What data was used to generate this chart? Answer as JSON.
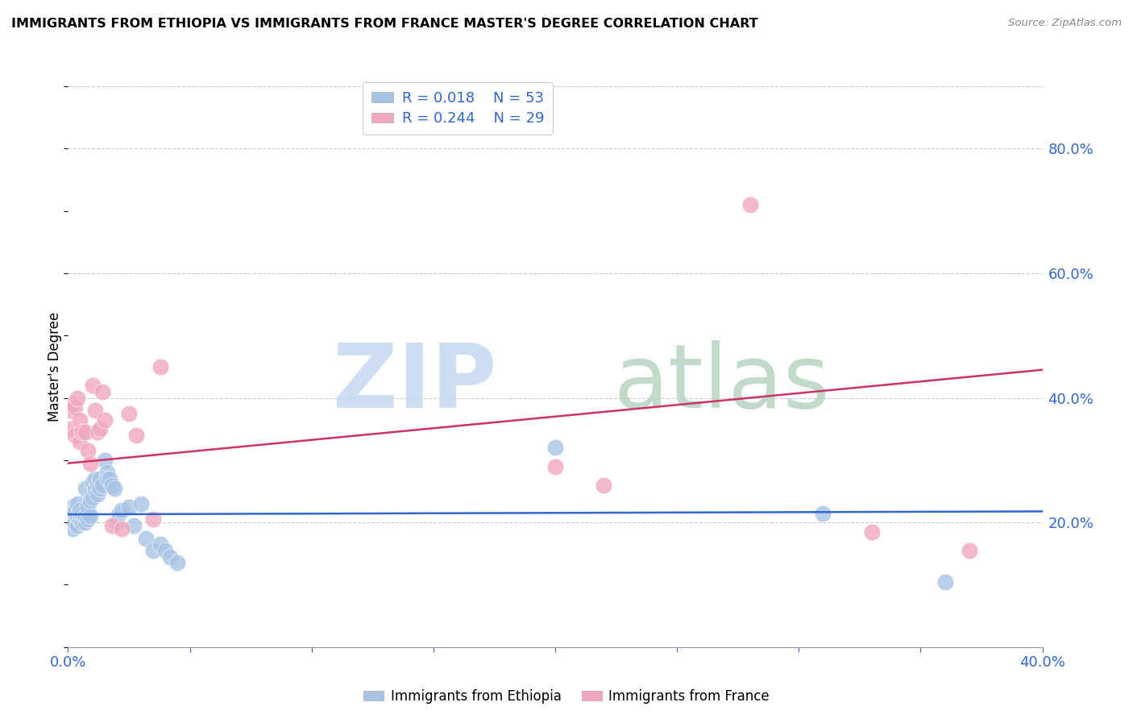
{
  "title": "IMMIGRANTS FROM ETHIOPIA VS IMMIGRANTS FROM FRANCE MASTER'S DEGREE CORRELATION CHART",
  "source": "Source: ZipAtlas.com",
  "ylabel": "Master's Degree",
  "legend1_label": "Immigrants from Ethiopia",
  "legend2_label": "Immigrants from France",
  "R1": 0.018,
  "N1": 53,
  "R2": 0.244,
  "N2": 29,
  "color1": "#a8c4e5",
  "color2": "#f0a8be",
  "line1_color": "#3366cc",
  "line2_color": "#cc3366",
  "xlim": [
    0.0,
    0.4
  ],
  "ylim": [
    0.0,
    0.9
  ],
  "right_yticks": [
    0.2,
    0.4,
    0.6,
    0.8
  ],
  "ethiopia_x": [
    0.001,
    0.001,
    0.002,
    0.002,
    0.002,
    0.003,
    0.003,
    0.003,
    0.004,
    0.004,
    0.004,
    0.005,
    0.005,
    0.005,
    0.006,
    0.006,
    0.007,
    0.007,
    0.007,
    0.008,
    0.008,
    0.009,
    0.009,
    0.01,
    0.01,
    0.011,
    0.011,
    0.012,
    0.012,
    0.013,
    0.013,
    0.014,
    0.015,
    0.016,
    0.016,
    0.017,
    0.018,
    0.019,
    0.02,
    0.021,
    0.022,
    0.025,
    0.027,
    0.03,
    0.032,
    0.035,
    0.038,
    0.04,
    0.042,
    0.045,
    0.2,
    0.31,
    0.36
  ],
  "ethiopia_y": [
    0.205,
    0.215,
    0.19,
    0.21,
    0.225,
    0.2,
    0.215,
    0.22,
    0.195,
    0.21,
    0.23,
    0.205,
    0.215,
    0.22,
    0.2,
    0.215,
    0.2,
    0.21,
    0.255,
    0.205,
    0.225,
    0.21,
    0.235,
    0.265,
    0.24,
    0.255,
    0.27,
    0.245,
    0.26,
    0.255,
    0.27,
    0.26,
    0.3,
    0.28,
    0.27,
    0.27,
    0.26,
    0.255,
    0.2,
    0.215,
    0.22,
    0.225,
    0.195,
    0.23,
    0.175,
    0.155,
    0.165,
    0.155,
    0.145,
    0.135,
    0.32,
    0.215,
    0.105
  ],
  "france_x": [
    0.001,
    0.001,
    0.002,
    0.003,
    0.003,
    0.004,
    0.005,
    0.005,
    0.006,
    0.007,
    0.008,
    0.009,
    0.01,
    0.011,
    0.012,
    0.013,
    0.014,
    0.015,
    0.018,
    0.022,
    0.025,
    0.028,
    0.035,
    0.038,
    0.2,
    0.22,
    0.28,
    0.33,
    0.37
  ],
  "france_y": [
    0.38,
    0.35,
    0.39,
    0.34,
    0.385,
    0.4,
    0.365,
    0.33,
    0.345,
    0.345,
    0.315,
    0.295,
    0.42,
    0.38,
    0.345,
    0.35,
    0.41,
    0.365,
    0.195,
    0.19,
    0.375,
    0.34,
    0.205,
    0.45,
    0.29,
    0.26,
    0.71,
    0.185,
    0.155
  ],
  "line1_intercept": 0.213,
  "line1_slope": 0.012,
  "line2_intercept": 0.295,
  "line2_slope": 0.375
}
